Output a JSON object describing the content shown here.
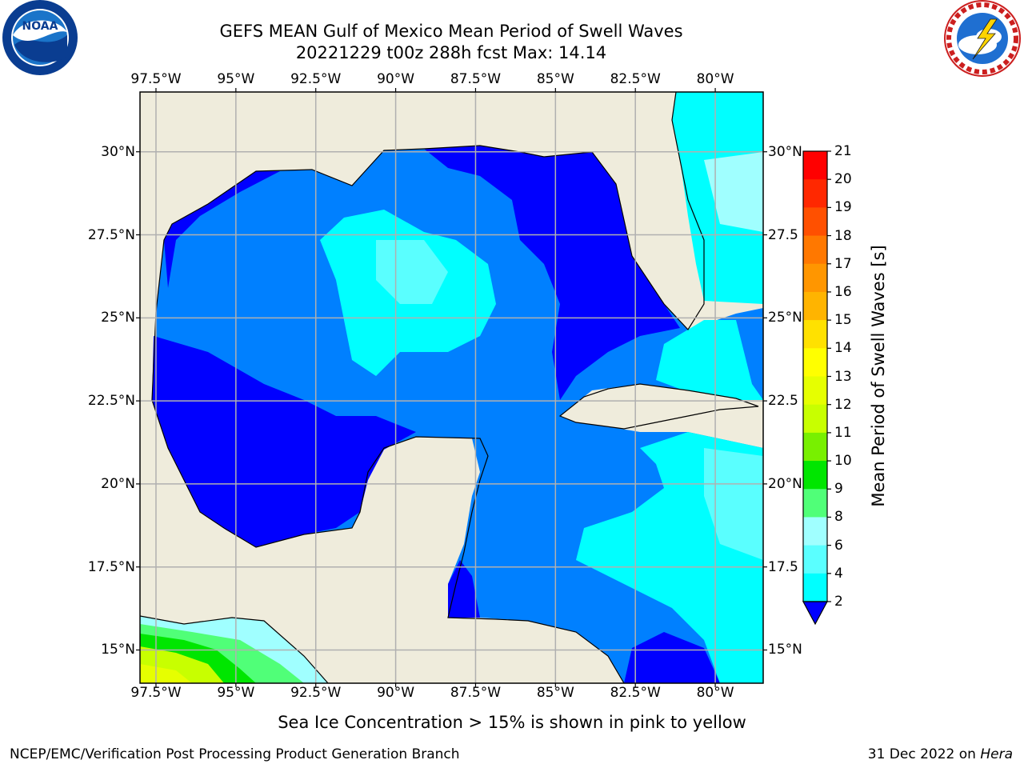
{
  "header": {
    "title_line1": "GEFS MEAN Gulf of Mexico Mean Period of Swell Waves",
    "title_line2": "20221229 t00z 288h fcst   Max: 14.14"
  },
  "logos": {
    "left": {
      "name": "noaa-logo",
      "text": "NOAA"
    },
    "right": {
      "name": "nws-logo",
      "text": "NATIONAL WEATHER SERVICE"
    }
  },
  "map": {
    "lon_range": [
      -98,
      -78.5
    ],
    "lat_range": [
      14,
      31.8
    ],
    "x_ticks": [
      "97.5°W",
      "95°W",
      "92.5°W",
      "90°W",
      "87.5°W",
      "85°W",
      "82.5°W",
      "80°W"
    ],
    "x_tick_values": [
      -97.5,
      -95,
      -92.5,
      -90,
      -87.5,
      -85,
      -82.5,
      -80
    ],
    "y_ticks": [
      "30°N",
      "27.5°N",
      "25°N",
      "22.5°N",
      "20°N",
      "17.5°N",
      "15°N"
    ],
    "y_tick_values": [
      30,
      27.5,
      25,
      22.5,
      20,
      17.5,
      15
    ],
    "y_ticks_right": [
      "30°N",
      "27.5",
      "25°N",
      "22.5",
      "20°N",
      "17.5",
      "15°N"
    ],
    "land_color": "#efecdc",
    "grid_color": "#b0b0b0"
  },
  "colorbar": {
    "label": "Mean Period of Swell Waves [s]",
    "ticks": [
      "21",
      "20",
      "19",
      "18",
      "17",
      "16",
      "15",
      "14",
      "13",
      "12",
      "11",
      "10",
      "9",
      "8",
      "6",
      "4",
      "2"
    ],
    "colors": [
      "#ff0000",
      "#ff2800",
      "#ff5000",
      "#ff7800",
      "#ff9600",
      "#ffb400",
      "#ffe100",
      "#ffff00",
      "#e6ff00",
      "#c8ff00",
      "#78f000",
      "#00e600",
      "#50ff78",
      "#a0ffff",
      "#5affff",
      "#00ffff",
      "#0080ff"
    ],
    "under_color": "#0000ff"
  },
  "footer": {
    "note": "Sea Ice Concentration > 15% is shown in pink to yellow",
    "left": "NCEP/EMC/Verification Post Processing Product Generation Branch",
    "right_date": "31 Dec 2022 on ",
    "right_host": "Hera"
  }
}
